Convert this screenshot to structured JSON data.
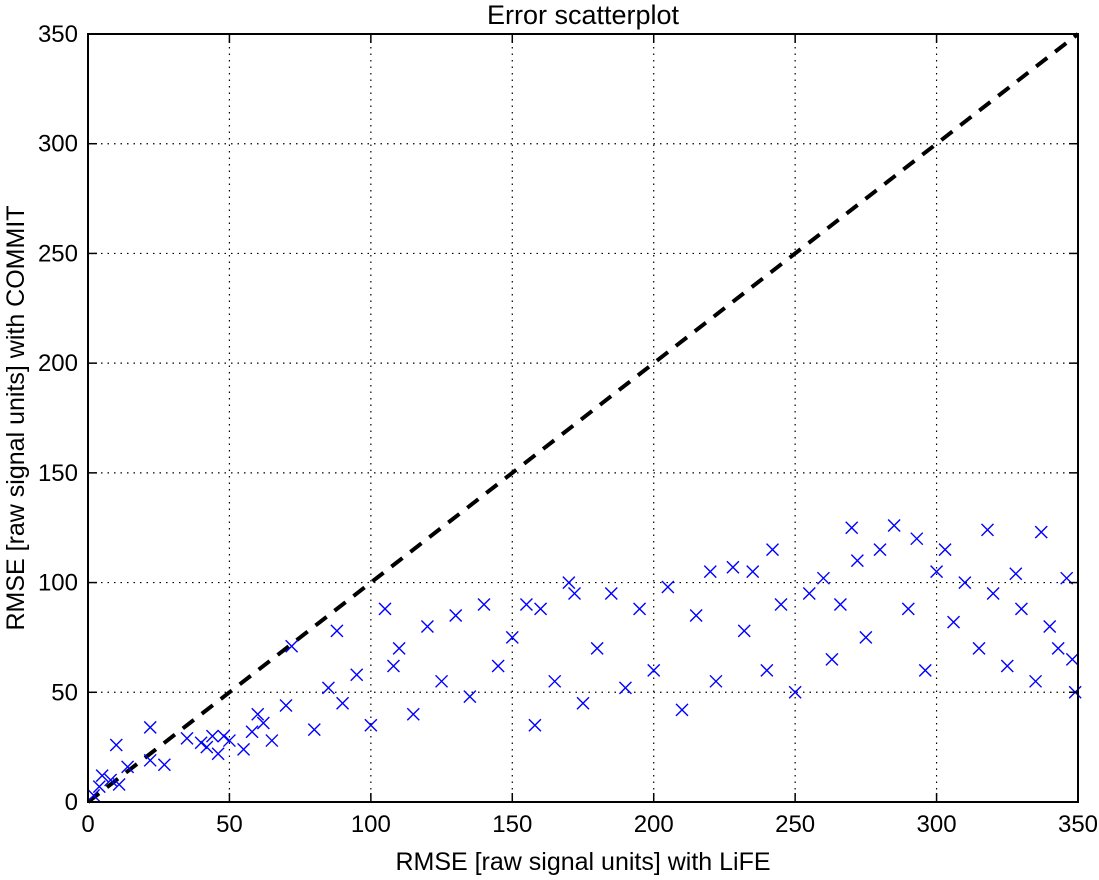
{
  "chart_data": {
    "type": "scatter",
    "title": "Error scatterplot",
    "xlabel": "RMSE [raw signal units] with LiFE",
    "ylabel": "RMSE [raw signal units] with COMMIT",
    "xlim": [
      0,
      350
    ],
    "ylim": [
      0,
      350
    ],
    "xticks": [
      0,
      50,
      100,
      150,
      200,
      250,
      300,
      350
    ],
    "yticks": [
      0,
      50,
      100,
      150,
      200,
      250,
      300,
      350
    ],
    "grid": true,
    "marker": "x",
    "colors": {
      "points": "#0000ff",
      "reference": "#000000"
    },
    "reference_line": {
      "style": "dashed",
      "points": [
        [
          0,
          0
        ],
        [
          350,
          350
        ]
      ]
    },
    "series": [
      {
        "values": [
          [
            2,
            3
          ],
          [
            4,
            7
          ],
          [
            5,
            12
          ],
          [
            8,
            10
          ],
          [
            10,
            26
          ],
          [
            11,
            8
          ],
          [
            14,
            16
          ],
          [
            22,
            19
          ],
          [
            22,
            34
          ],
          [
            27,
            17
          ],
          [
            35,
            29
          ],
          [
            40,
            27
          ],
          [
            42,
            25
          ],
          [
            44,
            30
          ],
          [
            46,
            22
          ],
          [
            48,
            30
          ],
          [
            50,
            28
          ],
          [
            55,
            24
          ],
          [
            58,
            32
          ],
          [
            60,
            40
          ],
          [
            62,
            36
          ],
          [
            65,
            28
          ],
          [
            70,
            44
          ],
          [
            72,
            71
          ],
          [
            80,
            33
          ],
          [
            85,
            52
          ],
          [
            88,
            78
          ],
          [
            90,
            45
          ],
          [
            95,
            58
          ],
          [
            100,
            35
          ],
          [
            105,
            88
          ],
          [
            108,
            62
          ],
          [
            110,
            70
          ],
          [
            115,
            40
          ],
          [
            120,
            80
          ],
          [
            125,
            55
          ],
          [
            130,
            85
          ],
          [
            135,
            48
          ],
          [
            140,
            90
          ],
          [
            145,
            62
          ],
          [
            150,
            75
          ],
          [
            155,
            90
          ],
          [
            158,
            35
          ],
          [
            160,
            88
          ],
          [
            165,
            55
          ],
          [
            170,
            100
          ],
          [
            172,
            95
          ],
          [
            175,
            45
          ],
          [
            180,
            70
          ],
          [
            185,
            95
          ],
          [
            190,
            52
          ],
          [
            195,
            88
          ],
          [
            200,
            60
          ],
          [
            205,
            98
          ],
          [
            210,
            42
          ],
          [
            215,
            85
          ],
          [
            220,
            105
          ],
          [
            222,
            55
          ],
          [
            228,
            107
          ],
          [
            232,
            78
          ],
          [
            235,
            105
          ],
          [
            240,
            60
          ],
          [
            242,
            115
          ],
          [
            245,
            90
          ],
          [
            250,
            50
          ],
          [
            255,
            95
          ],
          [
            260,
            102
          ],
          [
            263,
            65
          ],
          [
            266,
            90
          ],
          [
            270,
            125
          ],
          [
            272,
            110
          ],
          [
            275,
            75
          ],
          [
            280,
            115
          ],
          [
            285,
            126
          ],
          [
            290,
            88
          ],
          [
            293,
            120
          ],
          [
            296,
            60
          ],
          [
            300,
            105
          ],
          [
            303,
            115
          ],
          [
            306,
            82
          ],
          [
            310,
            100
          ],
          [
            315,
            70
          ],
          [
            318,
            124
          ],
          [
            320,
            95
          ],
          [
            325,
            62
          ],
          [
            328,
            104
          ],
          [
            330,
            88
          ],
          [
            335,
            55
          ],
          [
            337,
            123
          ],
          [
            340,
            80
          ],
          [
            343,
            70
          ],
          [
            346,
            102
          ],
          [
            348,
            65
          ],
          [
            349,
            50
          ]
        ]
      }
    ]
  }
}
